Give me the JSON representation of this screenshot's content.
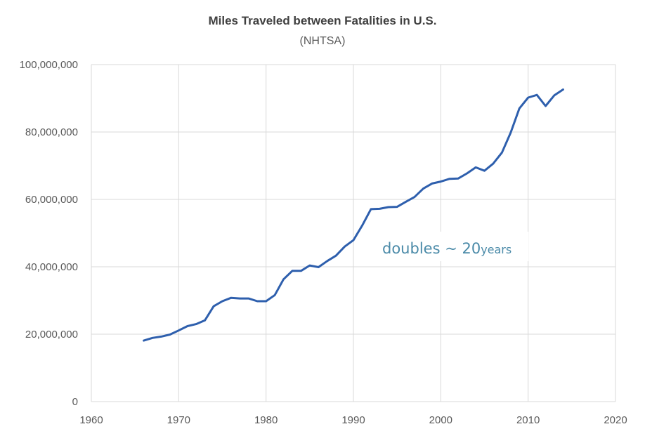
{
  "chart_data": {
    "type": "line",
    "title": "Miles Traveled between Fatalities in U.S.",
    "subtitle": "(NHTSA)",
    "xlabel": "",
    "ylabel": "",
    "xlim": [
      1960,
      2020
    ],
    "ylim": [
      0,
      100000000
    ],
    "x_ticks": [
      1960,
      1970,
      1980,
      1990,
      2000,
      2010,
      2020
    ],
    "y_ticks": [
      0,
      20000000,
      40000000,
      60000000,
      80000000,
      100000000
    ],
    "x_tick_labels": [
      "1960",
      "1970",
      "1980",
      "1990",
      "2000",
      "2010",
      "2020"
    ],
    "y_tick_labels": [
      "0",
      "20,000,000",
      "40,000,000",
      "60,000,000",
      "80,000,000",
      "100,000,000"
    ],
    "grid": true,
    "legend": "none",
    "colors": {
      "line": "#2e5fad",
      "annotation": "#4a8aa8",
      "grid": "#d9d9d9",
      "text": "#595959"
    },
    "annotation": {
      "main": "doubles  ~  20",
      "suffix": "years"
    },
    "series": [
      {
        "x": [
          1966,
          1967,
          1968,
          1969,
          1970,
          1971,
          1972,
          1973,
          1974,
          1975,
          1976,
          1977,
          1978,
          1979,
          1980,
          1981,
          1982,
          1983,
          1984,
          1985,
          1986,
          1987,
          1988,
          1989,
          1990,
          1991,
          1992,
          1993,
          1994,
          1995,
          1996,
          1997,
          1998,
          1999,
          2000,
          2001,
          2002,
          2003,
          2004,
          2005,
          2006,
          2007,
          2008,
          2009,
          2010,
          2011,
          2012,
          2013,
          2014
        ],
        "values": [
          18100000,
          18900000,
          19300000,
          19900000,
          21100000,
          22400000,
          23000000,
          24100000,
          28300000,
          29800000,
          30800000,
          30600000,
          30600000,
          29800000,
          29800000,
          31600000,
          36300000,
          38800000,
          38800000,
          40400000,
          39900000,
          41700000,
          43300000,
          46000000,
          47900000,
          52200000,
          57100000,
          57200000,
          57700000,
          57800000,
          59300000,
          60700000,
          63200000,
          64700000,
          65300000,
          66100000,
          66200000,
          67700000,
          69500000,
          68500000,
          70600000,
          73900000,
          79800000,
          87000000,
          90200000,
          91000000,
          87700000,
          90900000,
          92600000
        ]
      }
    ]
  }
}
